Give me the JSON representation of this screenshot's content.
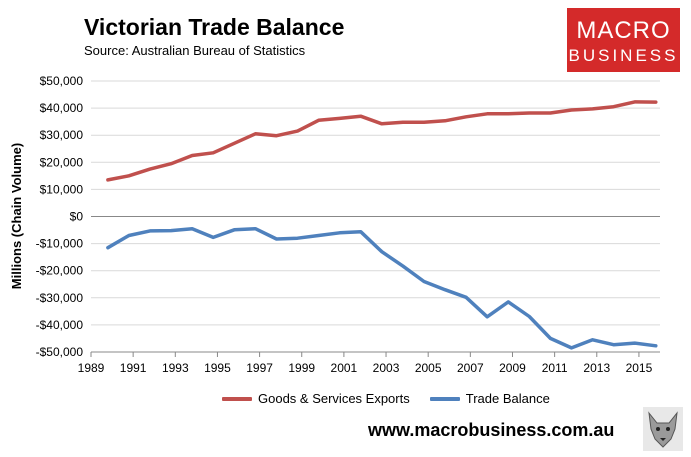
{
  "header": {
    "title": "Victorian Trade Balance",
    "subtitle": "Source:  Australian Bureau of Statistics"
  },
  "logo": {
    "line1": "MACRO",
    "line2": "BUSINESS",
    "color": "#d42a2a"
  },
  "footer": {
    "url": "www.macrobusiness.com.au",
    "wolf_icon": "wolf-icon"
  },
  "chart_data": {
    "type": "line",
    "title": "Victorian Trade Balance",
    "ylabel": "Millions (Chain Volume)",
    "ylim": [
      -50000,
      50000
    ],
    "xlim": [
      1989,
      2016
    ],
    "y_ticks": [
      50000,
      40000,
      30000,
      20000,
      10000,
      0,
      -10000,
      -20000,
      -30000,
      -40000,
      -50000
    ],
    "y_tick_labels": [
      "$50,000",
      "$40,000",
      "$30,000",
      "$20,000",
      "$10,000",
      "$0",
      "-$10,000",
      "-$20,000",
      "-$30,000",
      "-$40,000",
      "-$50,000"
    ],
    "x_ticks": [
      1989,
      1991,
      1993,
      1995,
      1997,
      1999,
      2001,
      2003,
      2005,
      2007,
      2009,
      2011,
      2013,
      2015
    ],
    "x_tick_labels": [
      "1989",
      "1991",
      "1993",
      "1995",
      "1997",
      "1999",
      "2001",
      "2003",
      "2005",
      "2007",
      "2009",
      "2011",
      "2013",
      "2015"
    ],
    "grid": "horizontal",
    "legend_position": "bottom",
    "x": [
      1989.8,
      1990.8,
      1991.8,
      1992.8,
      1993.8,
      1994.8,
      1995.8,
      1996.8,
      1997.8,
      1998.8,
      1999.8,
      2000.8,
      2001.8,
      2002.8,
      2003.8,
      2004.8,
      2005.8,
      2006.8,
      2007.8,
      2008.8,
      2009.8,
      2010.8,
      2011.8,
      2012.8,
      2013.8,
      2014.8,
      2015.8
    ],
    "series": [
      {
        "name": "Goods & Services Exports",
        "color": "#c0504d",
        "values": [
          13500,
          15000,
          17500,
          19500,
          22500,
          23500,
          27000,
          30500,
          29800,
          31500,
          35500,
          36200,
          37000,
          34200,
          34800,
          34800,
          35300,
          36800,
          37900,
          37900,
          38200,
          38200,
          39300,
          39700,
          40500,
          42300,
          42200
        ]
      },
      {
        "name": "Trade Balance",
        "color": "#4f81bd",
        "values": [
          -11500,
          -7000,
          -5300,
          -5200,
          -4500,
          -7700,
          -4900,
          -4500,
          -8300,
          -8000,
          -7000,
          -6000,
          -5600,
          -13000,
          -18300,
          -24000,
          -27000,
          -29800,
          -37000,
          -31500,
          -36900,
          -45000,
          -48500,
          -45500,
          -47300,
          -46700,
          -47700
        ]
      }
    ]
  }
}
